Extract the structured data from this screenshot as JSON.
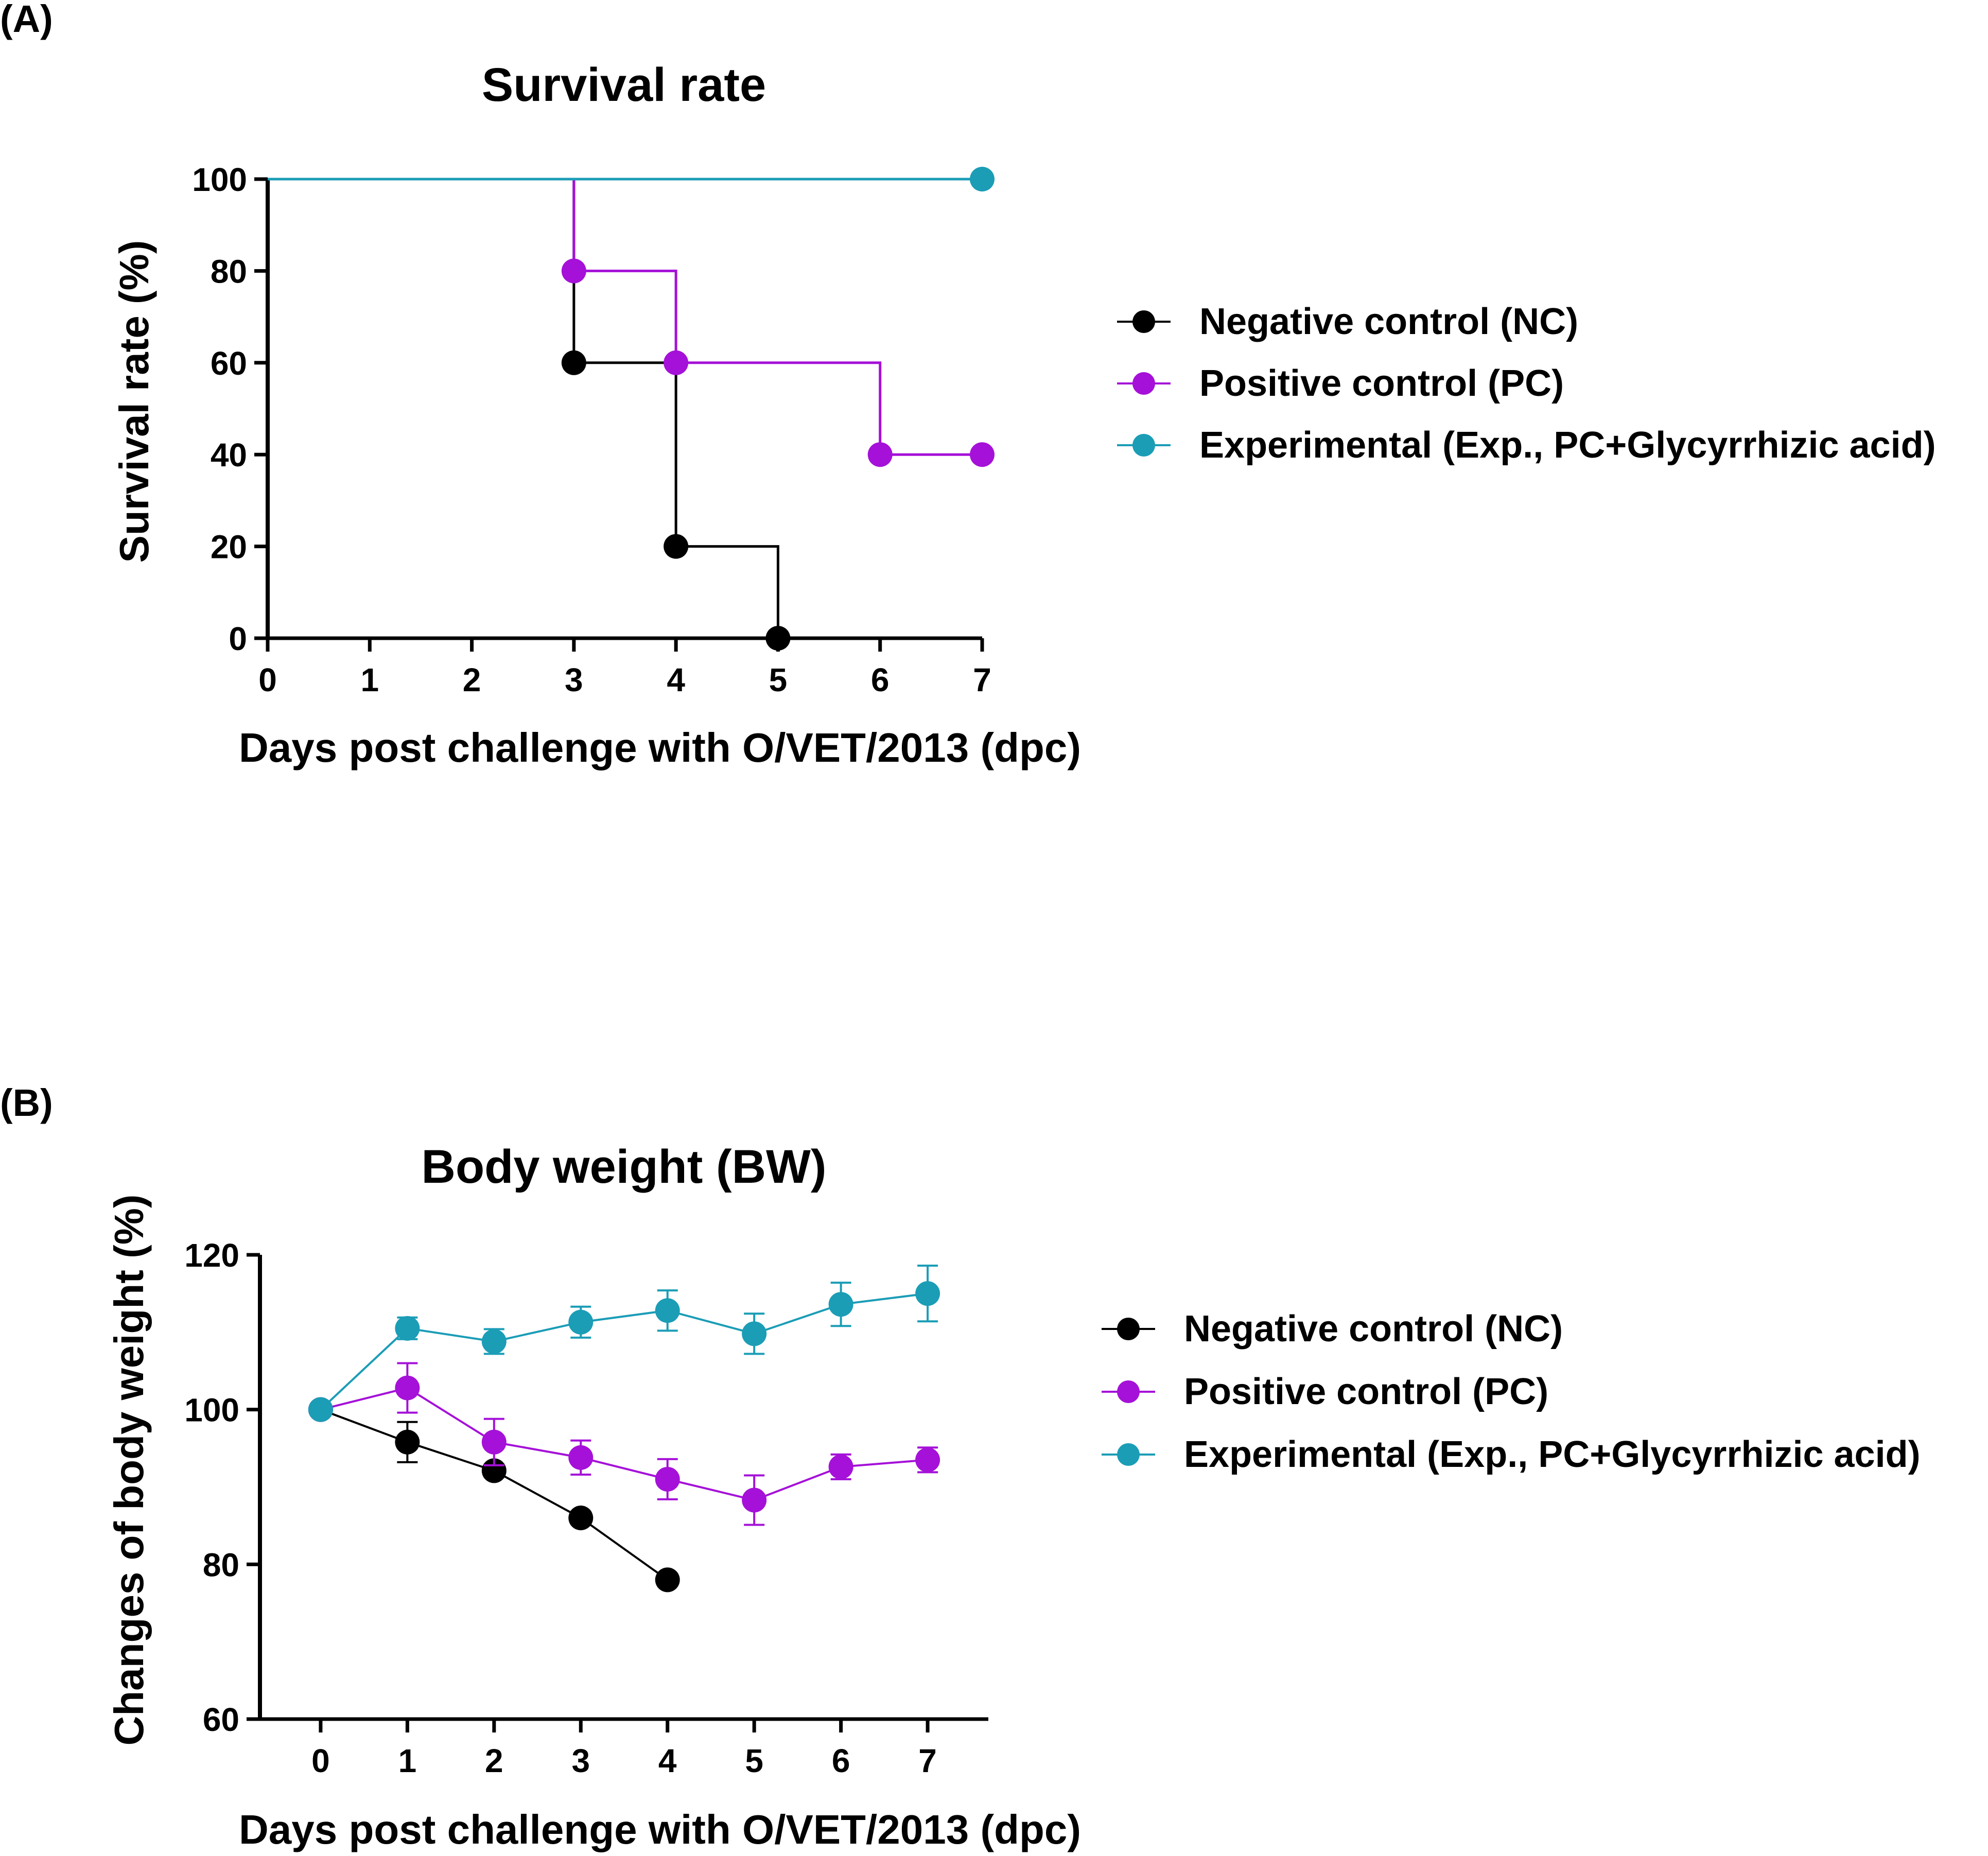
{
  "colors": {
    "nc": "#000000",
    "pc": "#a511d8",
    "exp": "#1b9db6",
    "axis": "#000000"
  },
  "chart_data": [
    {
      "type": "line",
      "panel_label": "(A)",
      "title": "Survival rate",
      "xlabel": "Days post challenge with O/VET/2013 (dpc)",
      "ylabel": "Survival rate (%)",
      "xlim": [
        0,
        7
      ],
      "ylim": [
        0,
        100
      ],
      "xticks": [
        "0",
        "1",
        "2",
        "3",
        "4",
        "5",
        "6",
        "7"
      ],
      "yticks": [
        "0",
        "20",
        "40",
        "60",
        "80",
        "100"
      ],
      "step": true,
      "legend": [
        "Negative control (NC)",
        "Positive control (PC)",
        "Experimental (Exp., PC+Glycyrrhizic acid)"
      ],
      "legend_position": "right",
      "series": [
        {
          "name": "Negative control (NC)",
          "x": [
            0,
            3,
            4,
            5
          ],
          "values": [
            100,
            60,
            20,
            0
          ],
          "markers_x": [
            3,
            4,
            5
          ]
        },
        {
          "name": "Positive control (PC)",
          "x": [
            0,
            3,
            4,
            6,
            7
          ],
          "values": [
            100,
            80,
            60,
            40,
            40
          ],
          "markers_x": [
            3,
            4,
            6,
            7
          ]
        },
        {
          "name": "Experimental (Exp., PC+Glycyrrhizic acid)",
          "x": [
            0,
            7
          ],
          "values": [
            100,
            100
          ],
          "markers_x": [
            7
          ]
        }
      ]
    },
    {
      "type": "line",
      "panel_label": "(B)",
      "title": "Body weight (BW)",
      "xlabel": "Days post challenge with O/VET/2013 (dpc)",
      "ylabel": "Changes of body weight (%)",
      "xlim": [
        -0.7,
        7.7
      ],
      "ylim": [
        60,
        120
      ],
      "xticks": [
        "0",
        "1",
        "2",
        "3",
        "4",
        "5",
        "6",
        "7"
      ],
      "yticks": [
        "60",
        "80",
        "100",
        "120"
      ],
      "step": false,
      "legend": [
        "Negative control (NC)",
        "Positive control (PC)",
        "Experimental (Exp., PC+Glycyrrhizic acid)"
      ],
      "legend_position": "right",
      "series": [
        {
          "name": "Negative control (NC)",
          "x": [
            0,
            1,
            2,
            3,
            4
          ],
          "values": [
            100,
            95.8,
            92.1,
            86,
            78
          ],
          "errors": [
            0,
            2.6,
            0.8,
            0.8,
            0
          ]
        },
        {
          "name": "Positive control (PC)",
          "x": [
            0,
            1,
            2,
            3,
            4,
            5,
            6,
            7
          ],
          "values": [
            100,
            102.8,
            95.8,
            93.8,
            91,
            88.3,
            92.6,
            93.5
          ],
          "errors": [
            0,
            3.2,
            3,
            2.2,
            2.6,
            3.2,
            1.6,
            1.6
          ]
        },
        {
          "name": "Experimental (Exp., PC+Glycyrrhizic acid)",
          "x": [
            0,
            1,
            2,
            3,
            4,
            5,
            6,
            7
          ],
          "values": [
            100,
            110.5,
            108.8,
            111.3,
            112.8,
            109.8,
            113.6,
            115
          ],
          "errors": [
            0,
            1.4,
            1.6,
            2,
            2.6,
            2.6,
            2.8,
            3.6
          ]
        }
      ]
    }
  ]
}
